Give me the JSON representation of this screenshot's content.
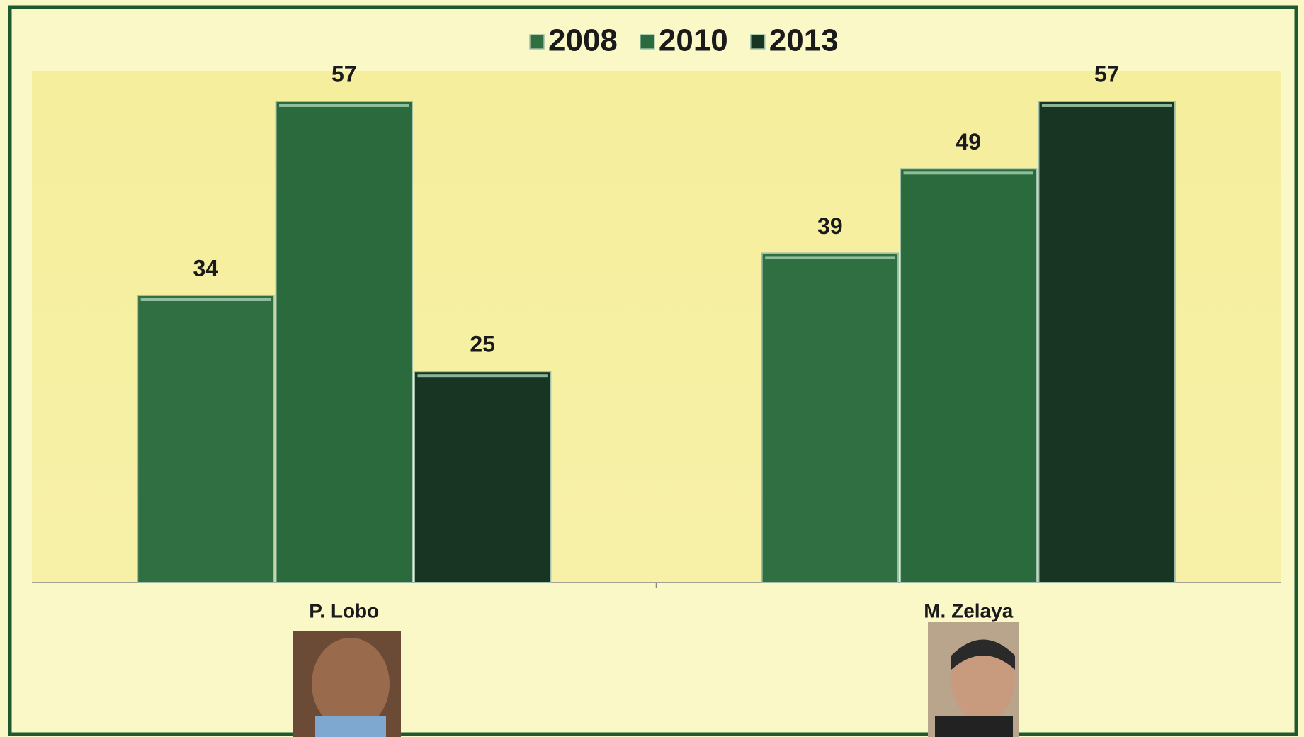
{
  "chart_data": {
    "type": "bar",
    "categories": [
      "P. Lobo",
      "M. Zelaya"
    ],
    "series": [
      {
        "name": "2008",
        "color": "#2f6f42",
        "values": [
          34,
          39
        ]
      },
      {
        "name": "2010",
        "color": "#2b6a3c",
        "values": [
          57,
          49
        ]
      },
      {
        "name": "2013",
        "color": "#173522",
        "values": [
          25,
          57
        ]
      }
    ],
    "data_labels": true,
    "legend": "top"
  }
}
